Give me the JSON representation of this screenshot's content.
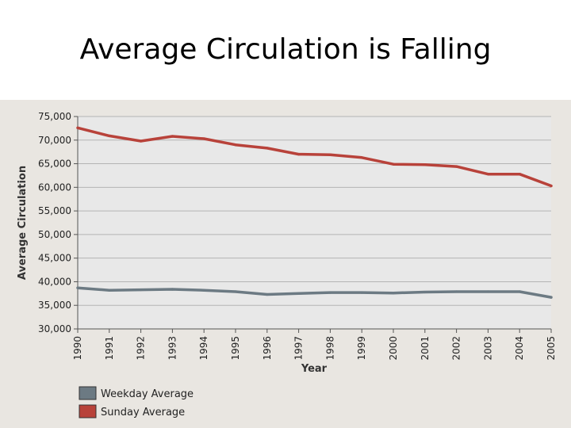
{
  "slide": {
    "title": "Average Circulation is Falling"
  },
  "colors": {
    "weekday": "#6c7a83",
    "sunday": "#b8423a",
    "plot_background": "#e8e8e8",
    "gridline": "#b4b4b4",
    "panel_background": "#e9e6e1"
  },
  "chart_data": {
    "type": "line",
    "title": "",
    "xlabel": "Year",
    "ylabel": "Average Circulation",
    "x": [
      "1990",
      "1991",
      "1992",
      "1993",
      "1994",
      "1995",
      "1996",
      "1997",
      "1998",
      "1999",
      "2000",
      "2001",
      "2002",
      "2003",
      "2004",
      "2005"
    ],
    "ylim": [
      30000,
      75000
    ],
    "yticks": [
      "30,000",
      "35,000",
      "40,000",
      "45,000",
      "50,000",
      "55,000",
      "60,000",
      "65,000",
      "70,000",
      "75,000"
    ],
    "grid": true,
    "legend_position": "bottom-left",
    "series": [
      {
        "name": "Weekday Average",
        "color": "weekday",
        "values": [
          38700,
          38200,
          38300,
          38400,
          38200,
          37900,
          37300,
          37500,
          37700,
          37700,
          37600,
          37800,
          37900,
          37900,
          37900,
          36700
        ]
      },
      {
        "name": "Sunday Average",
        "color": "sunday",
        "values": [
          72600,
          70900,
          69800,
          70800,
          70300,
          69000,
          68300,
          67000,
          66900,
          66300,
          64900,
          64800,
          64400,
          62800,
          62800,
          60300
        ]
      }
    ]
  }
}
